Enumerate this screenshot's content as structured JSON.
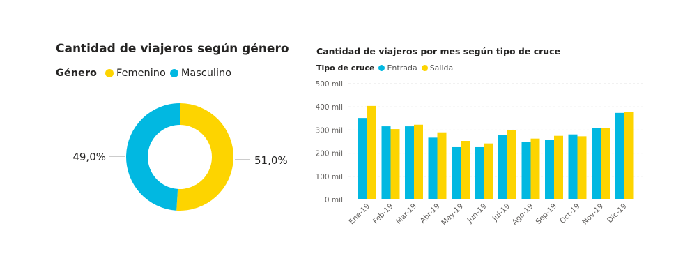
{
  "colors": {
    "entrada": "#01B8E1",
    "salida": "#FDD400",
    "text": "#252423",
    "axis": "#605E5C",
    "grid": "#E6E6E6"
  },
  "donut": {
    "title": "Cantidad de viajeros según género",
    "legend_title": "Género",
    "legend": [
      "Femenino",
      "Masculino"
    ],
    "slice_labels": [
      "51,0%",
      "49,0%"
    ]
  },
  "bars": {
    "title": "Cantidad de viajeros por mes según tipo de cruce",
    "legend_title": "Tipo de cruce",
    "legend": [
      "Entrada",
      "Salida"
    ],
    "y_tick_labels": [
      "0 mil",
      "100 mil",
      "200 mil",
      "300 mil",
      "400 mil",
      "500 mil"
    ]
  },
  "chart_data": [
    {
      "type": "pie",
      "title": "Cantidad de viajeros según género",
      "categories": [
        "Femenino",
        "Masculino"
      ],
      "values": [
        51.0,
        49.0
      ],
      "colors": [
        "#FDD400",
        "#01B8E1"
      ],
      "legend": "top-left"
    },
    {
      "type": "bar",
      "title": "Cantidad de viajeros por mes según tipo de cruce",
      "categories": [
        "Ene-19",
        "Feb-19",
        "Mar-19",
        "Abr-19",
        "May-19",
        "Jun-19",
        "Jul-19",
        "Ago-19",
        "Sep-19",
        "Oct-19",
        "Nov-19",
        "Dic-19"
      ],
      "series": [
        {
          "name": "Entrada",
          "values": [
            352,
            316,
            316,
            267,
            226,
            226,
            280,
            249,
            256,
            281,
            308,
            374
          ],
          "color": "#01B8E1"
        },
        {
          "name": "Salida",
          "values": [
            404,
            304,
            323,
            290,
            253,
            242,
            299,
            263,
            275,
            273,
            310,
            378
          ],
          "color": "#FDD400"
        }
      ],
      "ylim": [
        0,
        500
      ],
      "y_unit": "mil",
      "grid": true,
      "legend": "top-left"
    }
  ]
}
